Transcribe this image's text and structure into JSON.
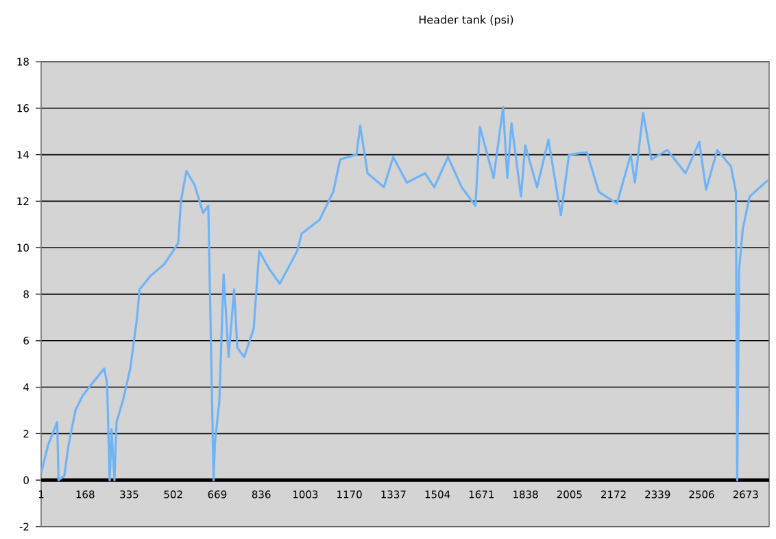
{
  "chart_data": {
    "type": "line",
    "title": "Header tank (psi)",
    "x": [
      1,
      27,
      62,
      67,
      89,
      105,
      131,
      157,
      183,
      219,
      240,
      251,
      261,
      268,
      279,
      287,
      313,
      339,
      365,
      374,
      417,
      469,
      521,
      531,
      552,
      583,
      615,
      635,
      655,
      660,
      677,
      693,
      712,
      733,
      745,
      771,
      807,
      828,
      868,
      906,
      972,
      989,
      1057,
      1109,
      1135,
      1197,
      1211,
      1239,
      1301,
      1336,
      1388,
      1457,
      1492,
      1544,
      1596,
      1648,
      1665,
      1717,
      1753,
      1769,
      1785,
      1821,
      1837,
      1882,
      1925,
      1972,
      2003,
      2071,
      2116,
      2185,
      2237,
      2253,
      2284,
      2315,
      2376,
      2445,
      2497,
      2523,
      2565,
      2617,
      2636,
      2641,
      2648,
      2662,
      2688,
      2757
    ],
    "series": [
      {
        "color": "#6fb3f7",
        "values": [
          0.3,
          1.5,
          2.5,
          0,
          0.2,
          1.5,
          3.0,
          3.6,
          4.0,
          4.5,
          4.8,
          4.2,
          0,
          2.2,
          0,
          2.5,
          3.5,
          4.8,
          7.0,
          8.2,
          8.8,
          9.3,
          10.2,
          12.0,
          13.3,
          12.7,
          11.5,
          11.8,
          0,
          1.6,
          3.4,
          8.85,
          5.3,
          8.2,
          5.7,
          5.3,
          6.5,
          9.85,
          9.05,
          8.45,
          9.85,
          10.6,
          11.2,
          12.4,
          13.8,
          14.0,
          15.25,
          13.2,
          12.6,
          13.9,
          12.8,
          13.2,
          12.6,
          13.9,
          12.6,
          11.8,
          15.2,
          13.0,
          16.05,
          13.0,
          15.35,
          12.2,
          14.4,
          12.6,
          14.65,
          11.4,
          14.0,
          14.1,
          12.4,
          11.9,
          14.0,
          12.8,
          15.8,
          13.8,
          14.2,
          13.2,
          14.55,
          12.5,
          14.2,
          13.5,
          12.4,
          0,
          9.05,
          10.8,
          12.2,
          12.9
        ]
      }
    ],
    "xlim": [
      1,
      2762
    ],
    "xticks": [
      1,
      168,
      335,
      502,
      669,
      836,
      1003,
      1170,
      1337,
      1504,
      1671,
      1838,
      2005,
      2172,
      2339,
      2506,
      2673
    ],
    "ylim": [
      -2,
      18
    ],
    "yticks": [
      -2,
      0,
      2,
      4,
      6,
      8,
      10,
      12,
      14,
      16,
      18
    ],
    "grid": "y",
    "marker": "none",
    "line_style": "solid"
  }
}
